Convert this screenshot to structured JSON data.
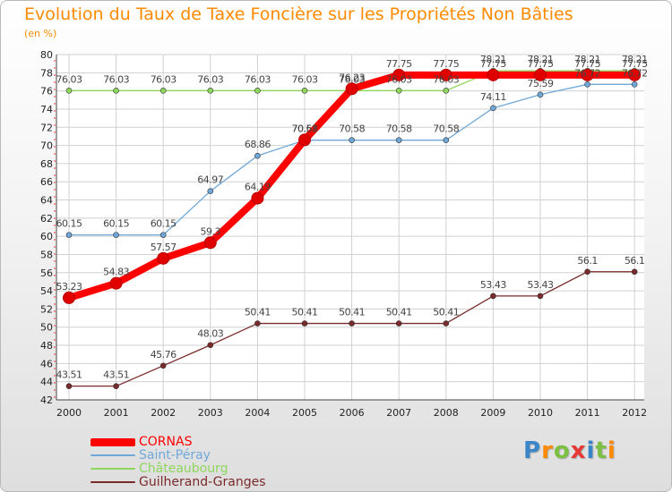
{
  "chart_data": {
    "type": "line",
    "title": "Evolution du Taux de Taxe Foncière sur les Propriétés Non Bâties",
    "subtitle": "(en %)",
    "categories": [
      "2000",
      "2001",
      "2002",
      "2003",
      "2004",
      "2005",
      "2006",
      "2007",
      "2008",
      "2009",
      "2010",
      "2011",
      "2012"
    ],
    "ylim": [
      42,
      80
    ],
    "yticks": [
      42,
      44,
      46,
      48,
      50,
      52,
      54,
      56,
      58,
      60,
      62,
      64,
      66,
      68,
      70,
      72,
      74,
      76,
      78,
      80
    ],
    "grid": true,
    "series": [
      {
        "name": "CORNAS",
        "color": "#ff0000",
        "values": [
          53.23,
          54.83,
          57.57,
          59.3,
          64.19,
          70.61,
          76.23,
          77.75,
          77.75,
          77.75,
          77.75,
          77.75,
          77.75
        ],
        "labels": [
          "53.23",
          "54.83",
          "57.57",
          "59.3",
          "64.19",
          "70.61",
          "76.23",
          "77.75",
          "77.75",
          "77.75",
          "77.75",
          "77.75",
          "77.75"
        ]
      },
      {
        "name": "Saint-Péray",
        "color": "#6fa8d8",
        "values": [
          60.15,
          60.15,
          60.15,
          64.97,
          68.86,
          70.58,
          70.58,
          70.58,
          70.58,
          74.11,
          75.59,
          76.72,
          76.72
        ],
        "labels": [
          "60.15",
          "60.15",
          "60.15",
          "64.97",
          "68.86",
          "70.58",
          "70.58",
          "70.58",
          "70.58",
          "74.11",
          "75.59",
          "76.72",
          "76.72"
        ]
      },
      {
        "name": "Châteaubourg",
        "color": "#8ed65c",
        "values": [
          76.03,
          76.03,
          76.03,
          76.03,
          76.03,
          76.03,
          76.03,
          76.03,
          76.03,
          78.21,
          78.21,
          78.21,
          78.21
        ],
        "labels": [
          "76.03",
          "76.03",
          "76.03",
          "76.03",
          "76.03",
          "76.03",
          "76.03",
          "76.03",
          "76.03",
          "78.21",
          "78.21",
          "78.21",
          "78.21"
        ]
      },
      {
        "name": "Guilherand-Granges",
        "color": "#7a2a2a",
        "values": [
          43.51,
          43.51,
          45.76,
          48.03,
          50.41,
          50.41,
          50.41,
          50.41,
          50.41,
          53.43,
          53.43,
          56.1,
          56.1
        ],
        "labels": [
          "43.51",
          "43.51",
          "45.76",
          "48.03",
          "50.41",
          "50.41",
          "50.41",
          "50.41",
          "50.41",
          "53.43",
          "53.43",
          "56.1",
          "56.1"
        ]
      }
    ]
  },
  "legend": {
    "items": [
      {
        "name": "CORNAS",
        "color": "#ff0000"
      },
      {
        "name": "Saint-Péray",
        "color": "#6fa8d8"
      },
      {
        "name": "Châteaubourg",
        "color": "#8ed65c"
      },
      {
        "name": "Guilherand-Granges",
        "color": "#7a2a2a"
      }
    ]
  },
  "brand": {
    "letters": [
      {
        "ch": "P",
        "color": "#3a86c8"
      },
      {
        "ch": "r",
        "color": "#ff8a00"
      },
      {
        "ch": "o",
        "color": "#7bc043"
      },
      {
        "ch": "x",
        "color": "#e53935"
      },
      {
        "ch": "i",
        "color": "#3a86c8"
      },
      {
        "ch": "t",
        "color": "#7bc043"
      },
      {
        "ch": "i",
        "color": "#ff8a00"
      }
    ]
  }
}
